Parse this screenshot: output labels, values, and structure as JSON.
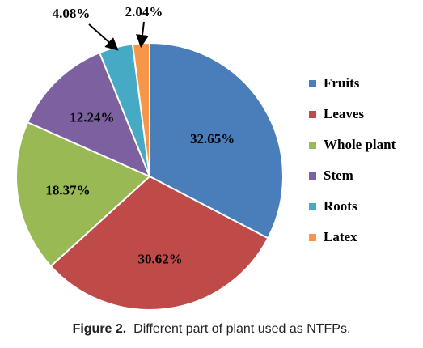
{
  "chart_data": {
    "type": "pie",
    "slices": [
      {
        "name": "Fruits",
        "value": 32.65,
        "label": "32.65%",
        "color": "#4a7ebb"
      },
      {
        "name": "Leaves",
        "value": 30.62,
        "label": "30.62%",
        "color": "#be4b48"
      },
      {
        "name": "Whole plant",
        "value": 18.37,
        "label": "18.37%",
        "color": "#98b954"
      },
      {
        "name": "Stem",
        "value": 12.24,
        "label": "12.24%",
        "color": "#7d60a0"
      },
      {
        "name": "Roots",
        "value": 4.08,
        "label": "4.08%",
        "color": "#46aac5"
      },
      {
        "name": "Latex",
        "value": 2.04,
        "label": "2.04%",
        "color": "#f79646"
      }
    ],
    "legend_position": "right"
  },
  "caption": {
    "number": "Figure 2.",
    "text": "Different part of plant used as NTFPs."
  }
}
